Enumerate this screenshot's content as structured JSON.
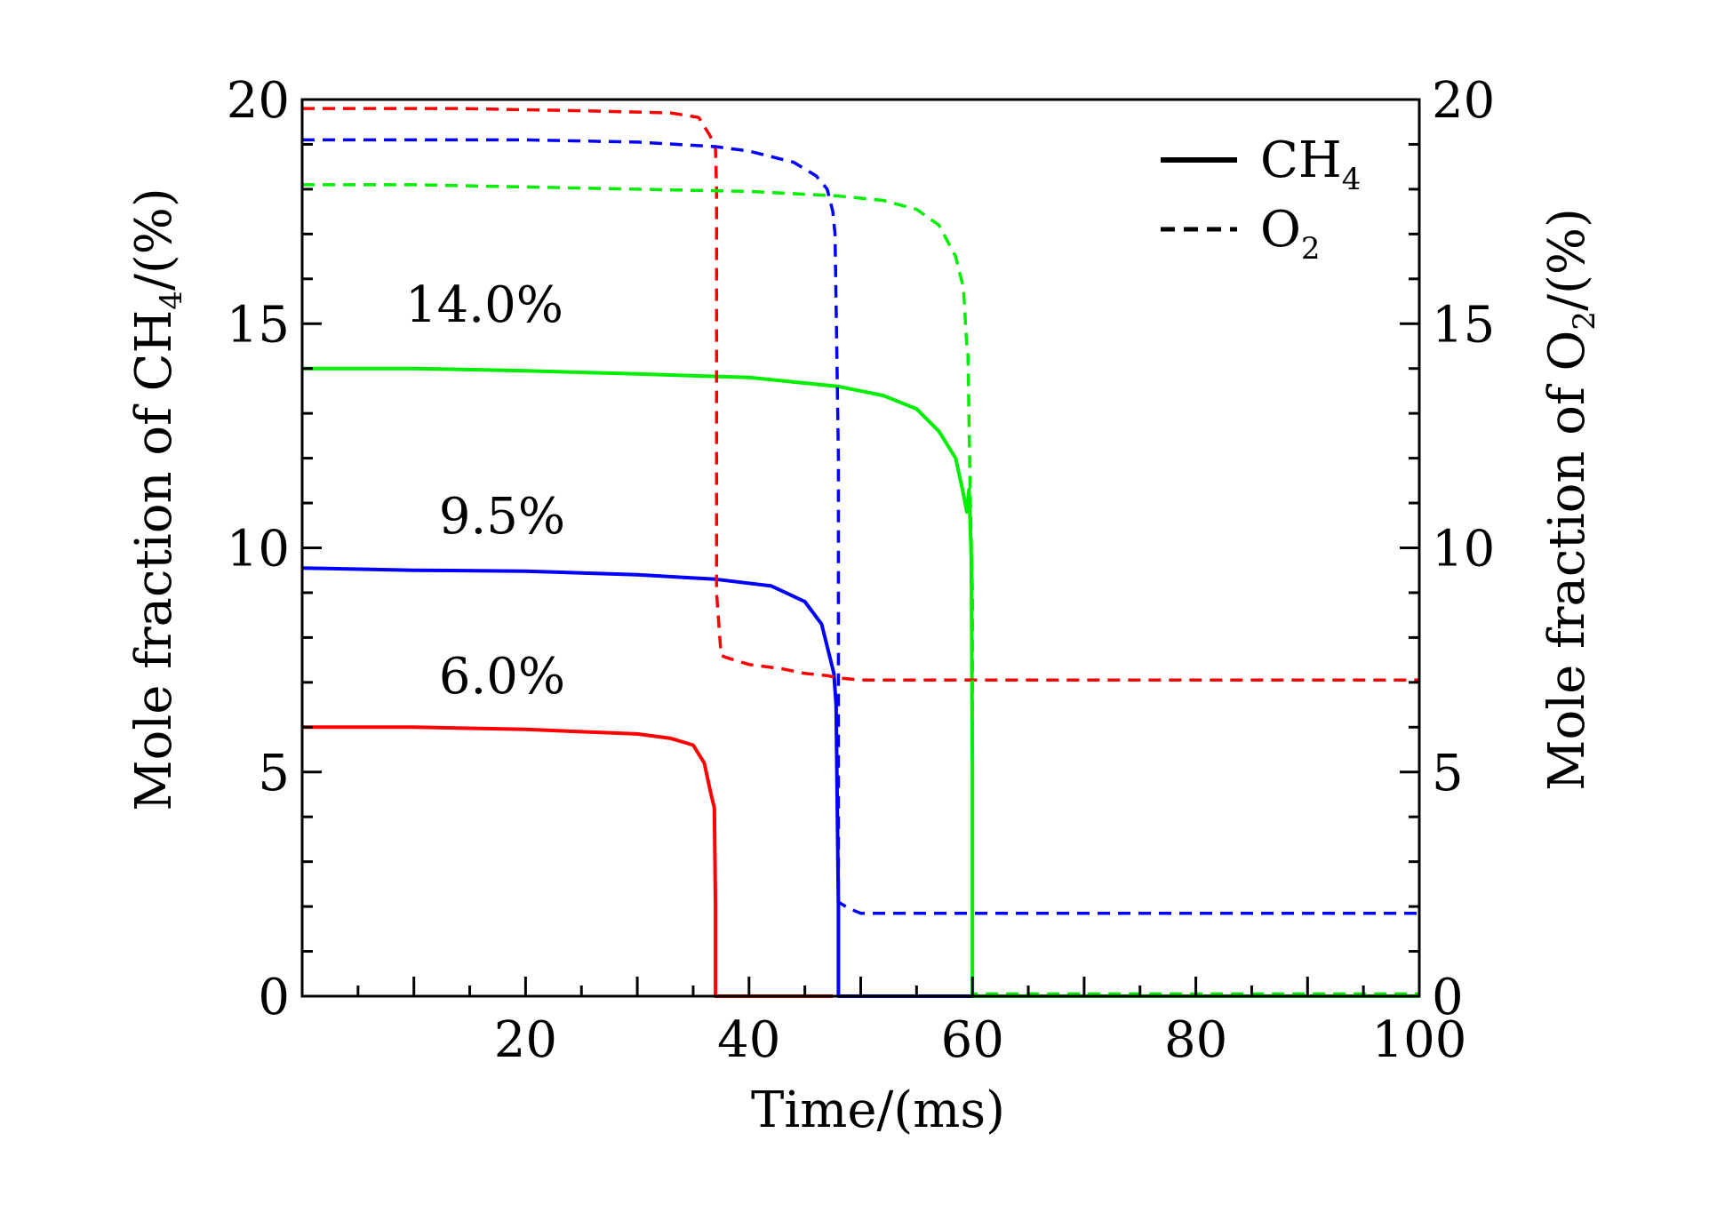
{
  "chart_data": {
    "type": "line",
    "title": "",
    "xlabel": "Time/(ms)",
    "ylabel": {
      "prefix": "Mole fraction of CH",
      "sub": "4",
      "suffix": "/(%)"
    },
    "y2label": {
      "prefix": "Mole fraction of O",
      "sub": "2",
      "suffix": "/(%)"
    },
    "xlim": [
      0,
      100
    ],
    "ylim": [
      0,
      20
    ],
    "y2lim": [
      0,
      20
    ],
    "x_ticks": [
      20,
      40,
      60,
      80,
      100
    ],
    "y_ticks": [
      0,
      5,
      10,
      15,
      20
    ],
    "y2_ticks": [
      0,
      5,
      10,
      15,
      20
    ],
    "grid": false,
    "legend": {
      "position": "top-right",
      "entries": [
        {
          "style": "solid",
          "label": "CH",
          "sub": "4"
        },
        {
          "style": "dashed",
          "label": "O",
          "sub": "2"
        }
      ]
    },
    "annotations": [
      {
        "text": "14.0%",
        "x": 17,
        "y": 15.5
      },
      {
        "text": "9.5%",
        "x": 18,
        "y": 10.7
      },
      {
        "text": "6.0%",
        "x": 18,
        "y": 7.1
      }
    ],
    "colors": {
      "red": "#ff0000",
      "blue": "#0000ff",
      "green": "#00ee00"
    },
    "series": [
      {
        "name": "CH4 6.0%",
        "axis": "left",
        "style": "solid",
        "color": "#ff0000",
        "x": [
          0,
          10,
          20,
          30,
          33,
          35,
          36,
          36.6,
          36.9,
          37,
          37,
          47.5
        ],
        "y": [
          6.0,
          6.0,
          5.95,
          5.85,
          5.75,
          5.6,
          5.2,
          4.5,
          4.2,
          2.0,
          0,
          0
        ]
      },
      {
        "name": "CH4 9.5%",
        "axis": "left",
        "style": "solid",
        "color": "#0000ff",
        "x": [
          0,
          10,
          20,
          30,
          37,
          42,
          45,
          46.5,
          47.2,
          47.6,
          47.8,
          48,
          48,
          60
        ],
        "y": [
          9.55,
          9.5,
          9.48,
          9.4,
          9.3,
          9.15,
          8.8,
          8.3,
          7.6,
          7.2,
          6.5,
          2.0,
          0,
          0
        ]
      },
      {
        "name": "CH4 14.0%",
        "axis": "left",
        "style": "solid",
        "color": "#00ee00",
        "x": [
          0,
          10,
          20,
          30,
          40,
          48,
          52,
          55,
          57,
          58.5,
          59.2,
          59.5,
          59.7,
          59.9,
          60,
          60,
          100
        ],
        "y": [
          14.0,
          14.0,
          13.95,
          13.88,
          13.8,
          13.6,
          13.4,
          13.1,
          12.6,
          12.0,
          11.2,
          10.8,
          11.3,
          9.8,
          5.0,
          0,
          0
        ]
      },
      {
        "name": "O2 6.0%",
        "axis": "right",
        "style": "dashed",
        "color": "#ff0000",
        "x": [
          0,
          14,
          25,
          33,
          35.5,
          36.5,
          37,
          37.1,
          37.1,
          37.5,
          38,
          40,
          43,
          45,
          47,
          48,
          50,
          60,
          100
        ],
        "y": [
          19.8,
          19.8,
          19.75,
          19.7,
          19.6,
          19.2,
          18.9,
          18.0,
          9.0,
          7.6,
          7.55,
          7.4,
          7.3,
          7.2,
          7.15,
          7.1,
          7.05,
          7.05,
          7.05
        ]
      },
      {
        "name": "O2 9.5%",
        "axis": "right",
        "style": "dashed",
        "color": "#0000ff",
        "x": [
          0,
          20,
          30,
          37,
          40,
          44,
          46,
          47,
          47.5,
          47.7,
          48,
          48,
          49,
          50,
          60,
          100
        ],
        "y": [
          19.1,
          19.1,
          19.05,
          18.95,
          18.85,
          18.6,
          18.3,
          18.0,
          17.5,
          17.0,
          12.0,
          2.1,
          1.95,
          1.85,
          1.85,
          1.85
        ]
      },
      {
        "name": "O2 14.0%",
        "axis": "right",
        "style": "dashed",
        "color": "#00ee00",
        "x": [
          0,
          10,
          20,
          30,
          40,
          48,
          52,
          55,
          57,
          58.5,
          59.2,
          59.5,
          59.6,
          59.8,
          60,
          60,
          100
        ],
        "y": [
          18.1,
          18.1,
          18.05,
          18.0,
          17.95,
          17.85,
          17.75,
          17.55,
          17.2,
          16.5,
          15.8,
          14.5,
          14.3,
          11.2,
          9.0,
          0.05,
          0.05
        ]
      }
    ]
  }
}
